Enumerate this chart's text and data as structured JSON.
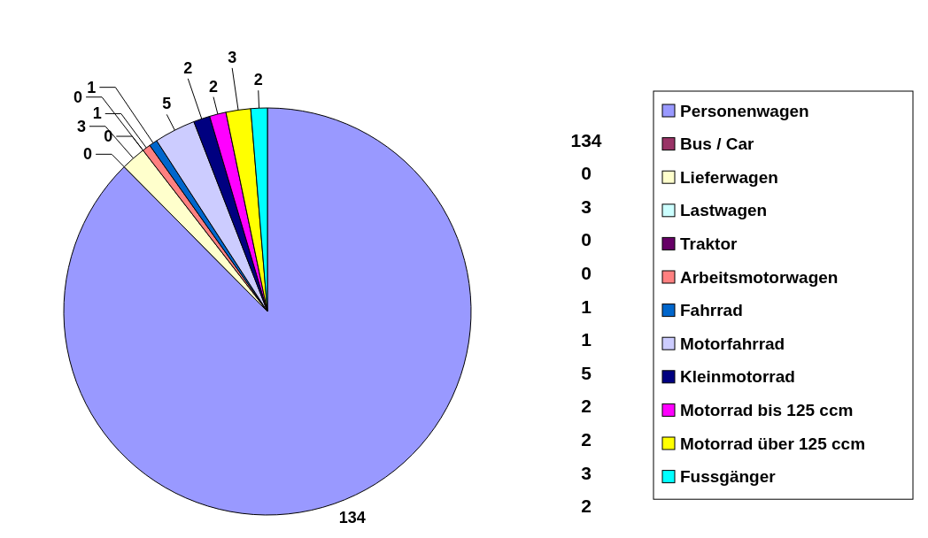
{
  "chart_data": {
    "type": "pie",
    "categories": [
      "Personenwagen",
      "Bus / Car",
      "Lieferwagen",
      "Lastwagen",
      "Traktor",
      "Arbeitsmotorwagen",
      "Fahrrad",
      "Motorfahrrad",
      "Kleinmotorrad",
      "Motorrad bis 125 ccm",
      "Motorrad über 125 ccm",
      "Fussgänger"
    ],
    "values": [
      134,
      0,
      3,
      0,
      0,
      1,
      1,
      5,
      2,
      2,
      3,
      2
    ],
    "colors": [
      "#9999ff",
      "#993366",
      "#ffffcc",
      "#ccffff",
      "#660066",
      "#ff8080",
      "#0066cc",
      "#ccccff",
      "#000080",
      "#ff00ff",
      "#ffff00",
      "#00ffff"
    ],
    "data_labels": true,
    "legend": "right",
    "annotations": [
      "134",
      "0",
      "3",
      "0",
      "0",
      "1",
      "1",
      "5",
      "2",
      "2",
      "3",
      "2"
    ]
  }
}
